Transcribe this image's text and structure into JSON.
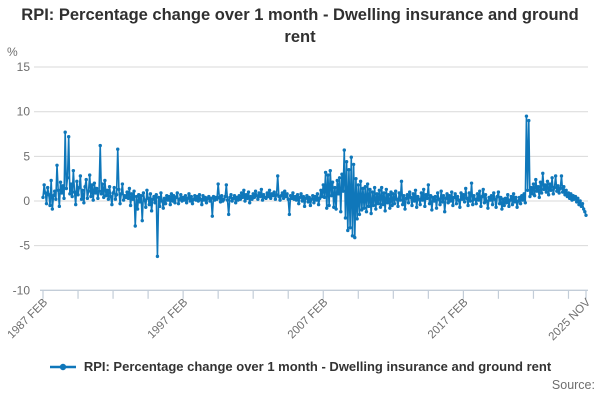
{
  "title": "RPI: Percentage change over 1 month - Dwelling insurance and ground rent",
  "legend": {
    "label": "RPI: Percentage change over 1 month - Dwelling insurance and ground rent"
  },
  "source_label": "Source:",
  "colors": {
    "series": "#0f77ba",
    "grid": "#d9d9d9",
    "axis": "#c3cdd8",
    "tick_text": "#6e6e6e",
    "title_text": "#303030"
  },
  "y_axis": {
    "unit_label": "%",
    "ticks": [
      15,
      10,
      5,
      0,
      -5,
      -10
    ],
    "min": -10,
    "max": 15
  },
  "x_axis": {
    "minor_tick_every_months": 30,
    "tick_label_entries": [
      {
        "month_index": 0,
        "label": "1987 FEB"
      },
      {
        "month_index": 120,
        "label": "1997 FEB"
      },
      {
        "month_index": 240,
        "label": "2007 FEB"
      },
      {
        "month_index": 360,
        "label": "2017 FEB"
      },
      {
        "month_index": 465,
        "label": "2025 NOV"
      }
    ]
  },
  "chart_data": {
    "type": "line",
    "title": "RPI: Percentage change over 1 month - Dwelling insurance and ground rent",
    "ylabel": "%",
    "ylim": [
      -10,
      15
    ],
    "grid": true,
    "legend_position": "bottom",
    "frequency": "monthly",
    "x_start": "1987 FEB",
    "x_end": "2025 NOV",
    "n_points": 466,
    "series": [
      {
        "name": "RPI: Percentage change over 1 month - Dwelling insurance and ground rent",
        "values": [
          0.4,
          1.8,
          0.9,
          -0.3,
          1.5,
          0.7,
          -0.5,
          2.3,
          -0.9,
          0.6,
          1.1,
          0.2,
          4.0,
          1.2,
          -0.6,
          2.1,
          0.9,
          1.7,
          0.3,
          7.7,
          1.4,
          2.6,
          7.2,
          0.8,
          1.9,
          0.5,
          3.4,
          1.0,
          -0.4,
          2.2,
          0.7,
          1.5,
          2.8,
          0.2,
          1.2,
          -0.2,
          1.6,
          2.4,
          0.3,
          1.1,
          2.9,
          0.5,
          1.8,
          0.1,
          2.0,
          0.9,
          1.4,
          0.3,
          1.1,
          6.2,
          0.8,
          1.9,
          0.4,
          2.3,
          0.6,
          1.2,
          0.2,
          1.6,
          0.5,
          -0.4,
          0.9,
          1.5,
          0.2,
          0.7,
          5.8,
          1.3,
          -0.3,
          0.8,
          1.9,
          0.1,
          0.6,
          0.4,
          1.0,
          0.3,
          1.4,
          -0.5,
          0.8,
          0.2,
          1.1,
          -2.8,
          0.5,
          -0.9,
          0.7,
          -0.1,
          0.6,
          -2.2,
          0.9,
          0.1,
          -0.7,
          1.2,
          0.3,
          -0.4,
          0.8,
          -1.1,
          0.2,
          0.5,
          -0.2,
          0.7,
          -6.2,
          0.4,
          -0.6,
          0.9,
          0.0,
          -0.8,
          0.3,
          -0.3,
          0.6,
          0.1,
          0.5,
          -0.4,
          0.8,
          0.0,
          0.6,
          -0.2,
          0.4,
          0.9,
          -0.3,
          0.2,
          0.7,
          0.0,
          0.4,
          0.1,
          0.6,
          -0.2,
          0.3,
          0.8,
          0.0,
          0.5,
          -0.3,
          0.2,
          0.6,
          0.1,
          0.5,
          0.0,
          0.7,
          0.2,
          -0.4,
          0.6,
          0.1,
          0.4,
          -0.2,
          0.3,
          0.5,
          0.0,
          0.3,
          -1.7,
          0.5,
          0.1,
          0.4,
          0.2,
          1.9,
          0.4,
          -0.1,
          0.6,
          0.0,
          0.2,
          0.5,
          1.8,
          0.1,
          -1.5,
          0.4,
          0.7,
          0.0,
          0.3,
          0.6,
          -0.2,
          0.4,
          0.1,
          0.6,
          0.2,
          0.9,
          0.4,
          1.2,
          0.0,
          0.7,
          0.3,
          1.0,
          -0.2,
          0.5,
          0.2,
          0.8,
          0.4,
          1.1,
          0.6,
          0.2,
          0.9,
          0.5,
          1.3,
          0.1,
          0.7,
          0.4,
          0.3,
          0.9,
          0.5,
          1.2,
          0.3,
          0.8,
          0.6,
          1.0,
          0.2,
          0.7,
          2.8,
          0.5,
          0.1,
          0.6,
          0.9,
          0.3,
          1.1,
          0.5,
          0.8,
          0.2,
          -1.5,
          0.6,
          0.3,
          0.9,
          0.2,
          0.5,
          0.1,
          0.7,
          -0.3,
          0.4,
          0.8,
          0.0,
          0.5,
          -0.6,
          0.3,
          0.6,
          -0.1,
          0.4,
          -0.5,
          0.2,
          0.6,
          -0.2,
          0.5,
          0.1,
          0.8,
          -0.4,
          0.3,
          1.2,
          0.5,
          1.8,
          0.4,
          3.2,
          -0.8,
          2.9,
          -0.5,
          3.4,
          0.6,
          2.1,
          -0.7,
          1.5,
          -0.9,
          2.3,
          0.8,
          2.6,
          -1.2,
          3.0,
          1.1,
          5.7,
          -1.9,
          4.4,
          -3.3,
          3.5,
          -3.0,
          4.9,
          -3.9,
          4.1,
          -4.1,
          2.5,
          -2.0,
          1.8,
          -1.5,
          2.2,
          -1.0,
          1.4,
          -0.8,
          1.6,
          -1.2,
          1.9,
          -0.6,
          1.3,
          -1.4,
          1.0,
          -0.5,
          1.5,
          -0.9,
          0.8,
          -0.3,
          1.2,
          -0.7,
          1.5,
          -0.4,
          0.9,
          -1.1,
          1.3,
          -0.2,
          0.7,
          -0.8,
          1.0,
          -0.5,
          0.8,
          -0.3,
          1.1,
          0.2,
          -0.6,
          0.9,
          0.1,
          2.2,
          -0.4,
          0.6,
          -0.9,
          0.3,
          0.7,
          -0.2,
          1.0,
          0.4,
          -0.5,
          0.8,
          0.0,
          1.2,
          -0.7,
          0.5,
          0.2,
          -0.4,
          0.9,
          0.1,
          1.3,
          -0.6,
          0.7,
          0.3,
          1.8,
          -0.3,
          0.6,
          -1.0,
          0.4,
          0.0,
          0.5,
          -0.8,
          0.9,
          0.2,
          -0.4,
          1.1,
          -0.1,
          0.6,
          -1.2,
          0.3,
          0.8,
          -0.2,
          0.6,
          0.0,
          1.0,
          -0.5,
          0.4,
          0.8,
          -0.3,
          0.5,
          0.1,
          -0.7,
          0.9,
          0.2,
          0.7,
          -0.1,
          1.4,
          0.3,
          -0.5,
          0.9,
          0.0,
          2.0,
          -0.4,
          0.6,
          0.2,
          -0.3,
          0.8,
          0.1,
          1.1,
          -0.6,
          0.5,
          1.3,
          -0.2,
          0.7,
          0.0,
          -0.8,
          0.4,
          0.1,
          0.6,
          -0.4,
          0.9,
          0.2,
          -0.7,
          0.5,
          1.0,
          -0.3,
          0.4,
          -0.9,
          0.2,
          -0.5,
          0.3,
          -0.2,
          0.7,
          -0.6,
          0.1,
          0.5,
          -0.4,
          0.8,
          -0.1,
          0.4,
          -0.7,
          0.0,
          0.4,
          -0.3,
          0.6,
          0.1,
          0.8,
          -0.2,
          9.5,
          1.2,
          9.0,
          0.5,
          1.5,
          0.8,
          1.9,
          0.6,
          2.4,
          1.1,
          1.6,
          0.4,
          2.1,
          0.9,
          3.1,
          1.3,
          1.8,
          1.0,
          2.2,
          0.7,
          1.9,
          1.2,
          2.6,
          0.8,
          1.5,
          2.8,
          1.1,
          1.7,
          0.9,
          1.4,
          2.8,
          1.0,
          1.6,
          0.7,
          1.2,
          0.5,
          0.9,
          0.3,
          0.8,
          0.1,
          0.6,
          0.2,
          0.5,
          -0.1,
          0.3,
          -0.4,
          0.0,
          -0.6,
          -0.3,
          -0.9,
          -1.2,
          -1.6
        ]
      }
    ]
  }
}
